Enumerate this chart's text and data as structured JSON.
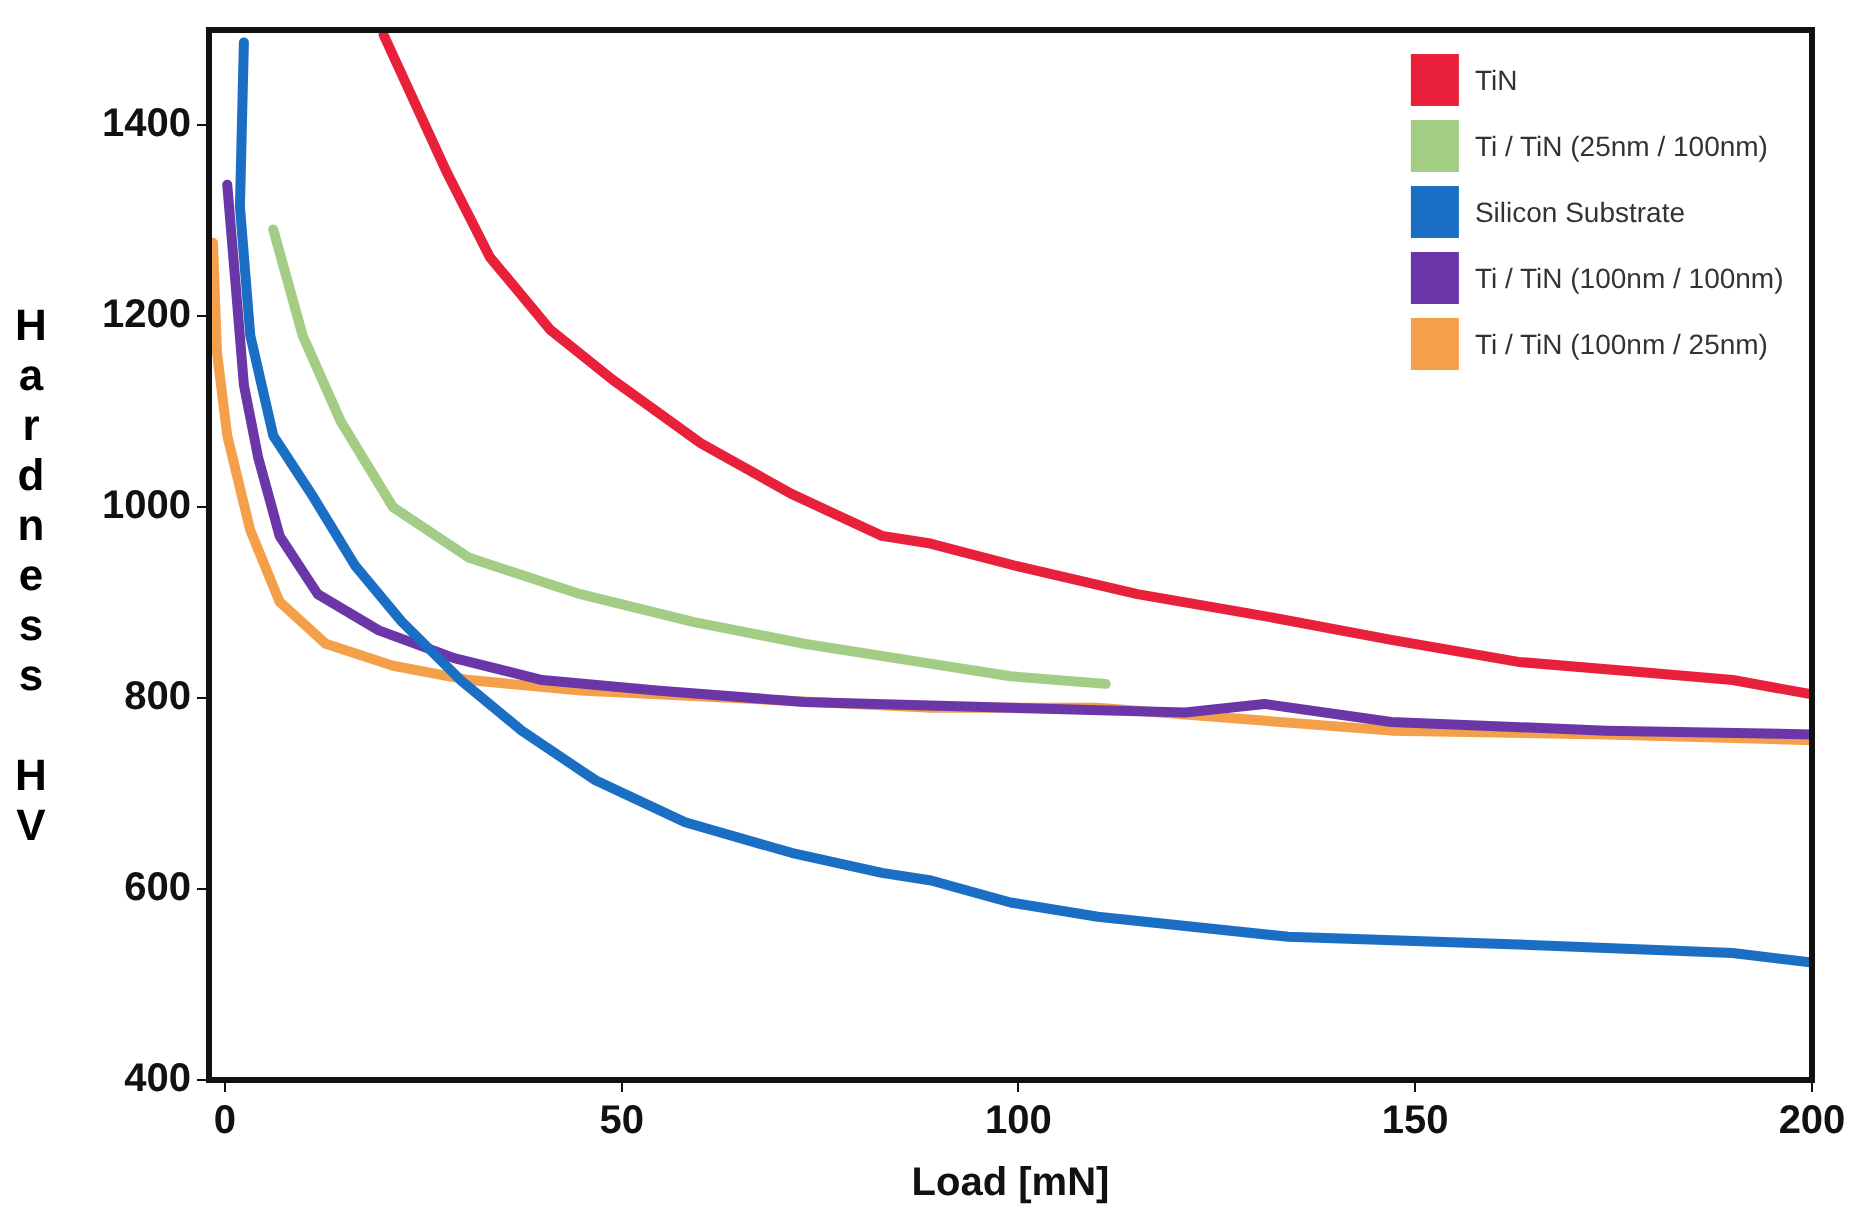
{
  "chart_data": {
    "type": "line",
    "xlabel": "Load [mN]",
    "ylabel": "Hardness HV",
    "xlim": [
      -2,
      200
    ],
    "xticks": [
      0,
      50,
      100,
      150,
      200
    ],
    "ylim": [
      400,
      1500
    ],
    "yticks": [
      400,
      600,
      800,
      1000,
      1200,
      1400
    ],
    "grid": false,
    "legend": "top right",
    "marker": "none",
    "line_style": "solid",
    "series": [
      {
        "name": "TiN",
        "color": "#e8203a",
        "x": [
          20,
          27.9,
          33.4,
          41,
          48.8,
          60,
          71.4,
          82.8,
          88.9,
          99.5,
          115,
          131,
          147,
          163,
          179,
          190,
          200
        ],
        "values": [
          1495,
          1352,
          1262,
          1186,
          1134,
          1067,
          1014,
          970,
          962,
          939,
          909,
          886,
          861,
          838,
          827,
          819,
          804
        ]
      },
      {
        "name": "Ti / TiN (25nm / 100nm)",
        "color": "#a3cc85",
        "x": [
          6.1,
          9.8,
          14.6,
          21.2,
          30.8,
          44.8,
          59,
          73,
          87.5,
          99,
          111
        ],
        "values": [
          1291,
          1180,
          1090,
          1000,
          947,
          909,
          880,
          857,
          838,
          823,
          815
        ]
      },
      {
        "name": "Silicon Substrate",
        "color": "#1a6fc4",
        "x": [
          2.4,
          1.9,
          3.2,
          6.1,
          10.9,
          16.4,
          22.3,
          29.7,
          37.4,
          46.7,
          58,
          71.4,
          82.8,
          89,
          99,
          110,
          134,
          163,
          190,
          200
        ],
        "values": [
          1487,
          1315,
          1180,
          1075,
          1014,
          939,
          880,
          819,
          766,
          714,
          670,
          638,
          617,
          609,
          586,
          571,
          550,
          542,
          533,
          523
        ]
      },
      {
        "name": "Ti / TiN (100nm / 100nm)",
        "color": "#6a36a8",
        "x": [
          0.3,
          1.3,
          2.4,
          4.2,
          6.9,
          11.7,
          19.4,
          28.9,
          40,
          54.4,
          73,
          99,
          121,
          131,
          147,
          174,
          200
        ],
        "values": [
          1338,
          1239,
          1128,
          1052,
          970,
          909,
          871,
          842,
          819,
          808,
          796,
          790,
          785,
          794,
          775,
          766,
          762
        ]
      },
      {
        "name": "Ti / TiN (100nm / 25nm)",
        "color": "#f4a04a",
        "x": [
          -1.5,
          -1,
          0.3,
          3.2,
          6.9,
          12.7,
          21.2,
          30.8,
          44.8,
          89,
          110,
          147,
          174,
          200
        ],
        "values": [
          1277,
          1163,
          1075,
          976,
          901,
          857,
          834,
          819,
          808,
          790,
          790,
          766,
          762,
          756
        ]
      }
    ]
  }
}
